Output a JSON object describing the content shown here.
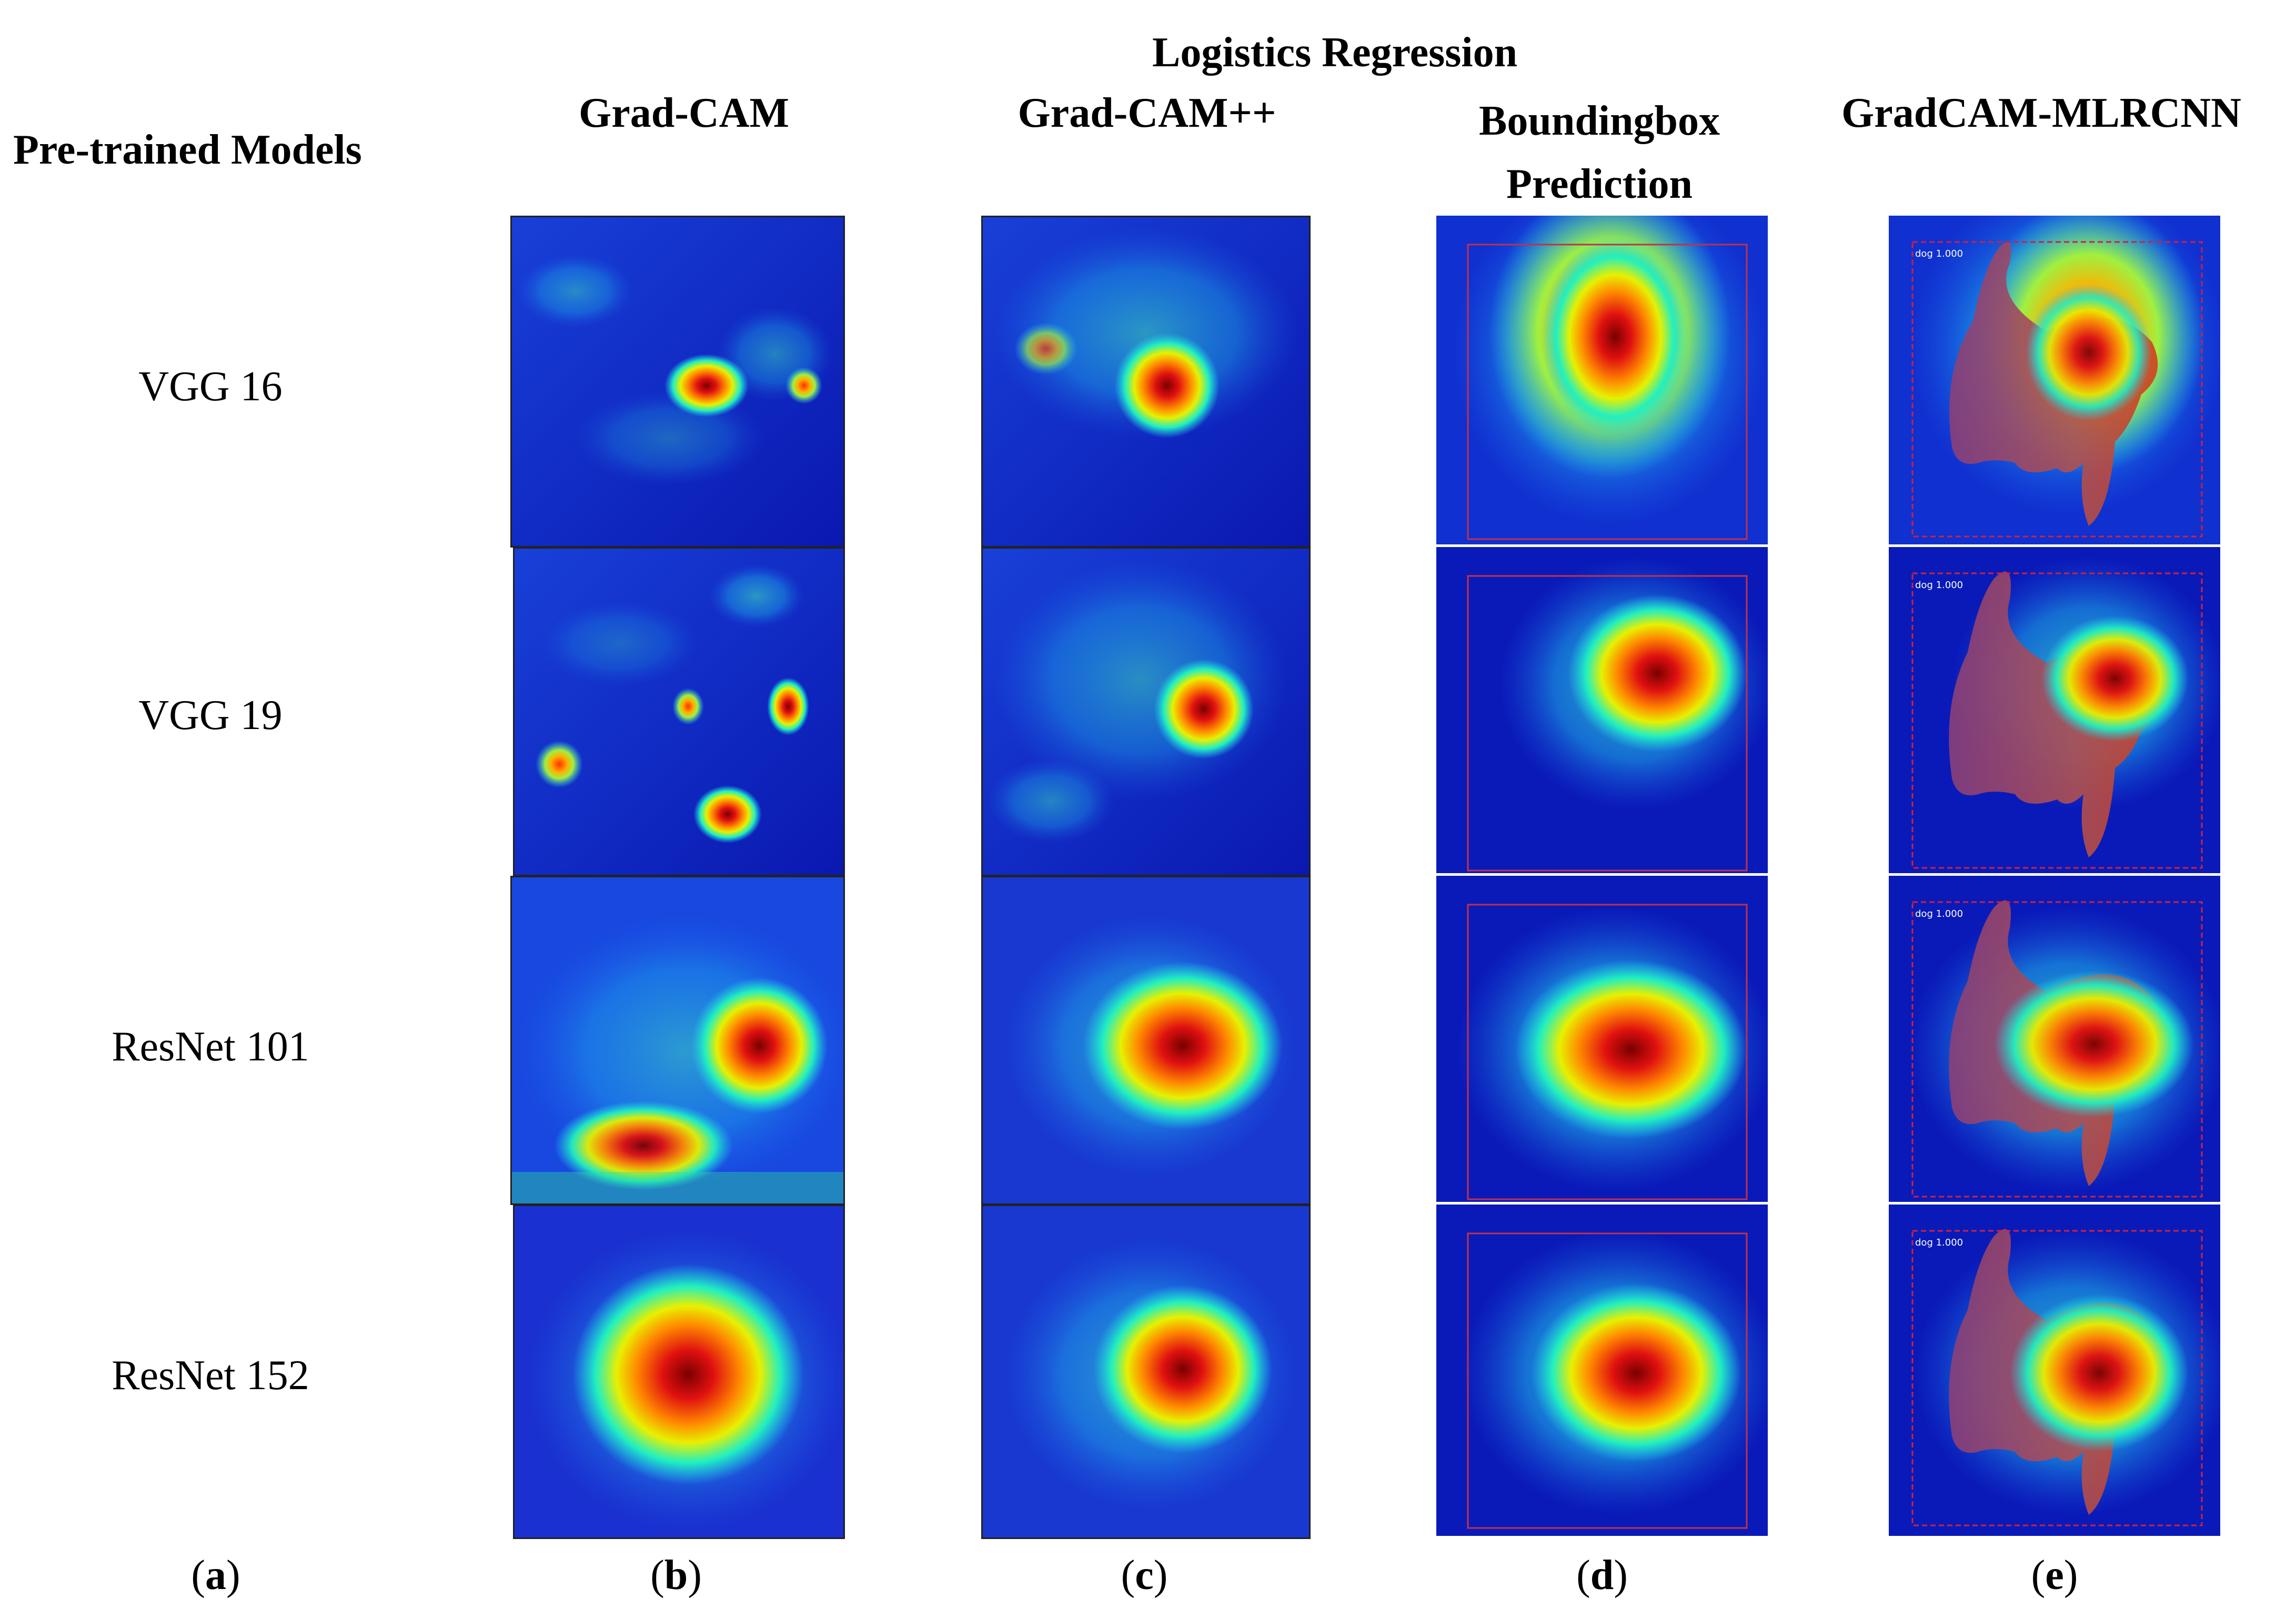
{
  "group_header": "Logistics Regression",
  "row_header": "Pre-trained Models",
  "columns": [
    {
      "title": "Grad-CAM",
      "sub": "b"
    },
    {
      "title": "Grad-CAM++",
      "sub": "c"
    },
    {
      "title_line1": "Boundingbox",
      "title_line2": "Prediction",
      "sub": "d"
    },
    {
      "title": "GradCAM-MLRCNN",
      "sub": "e"
    }
  ],
  "rows": [
    "VGG 16",
    "VGG 19",
    "ResNet 101",
    "ResNet 152"
  ],
  "first_sub": "a",
  "detection_labels": [
    "dog 1.000",
    "dog 1.000",
    "dog 1.000",
    "dog 1.000"
  ],
  "colors": {
    "heat_low": "#1020d8",
    "heat_mid": "#18e0e0",
    "heat_hot": "#e81010",
    "box": "#d02040",
    "mask": "#a04070"
  }
}
